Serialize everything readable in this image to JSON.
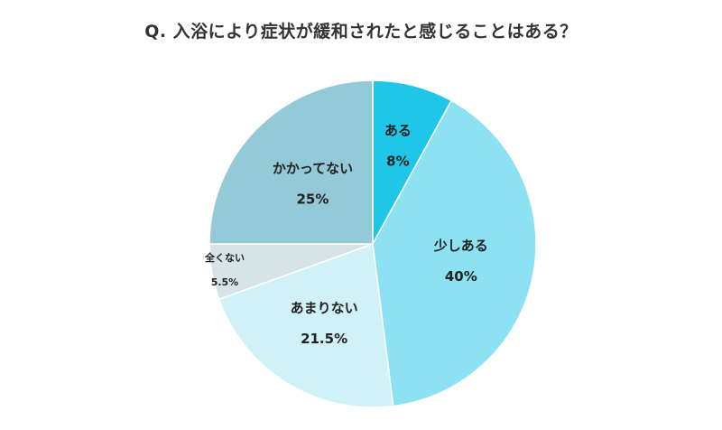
{
  "title": "Q.  入浴により症状が緩和されたと感じることはある？",
  "chart_data": {
    "type": "pie",
    "title": "Q.  入浴により症状が緩和されたと感じることはある？",
    "start_angle_deg": 0,
    "direction": "clockwise",
    "slices": [
      {
        "label": "ある",
        "value": 8,
        "value_label": "8%",
        "color": "#20c6e8"
      },
      {
        "label": "少しある",
        "value": 40,
        "value_label": "40%",
        "color": "#8ce1f3"
      },
      {
        "label": "あまりない",
        "value": 21.5,
        "value_label": "21.5%",
        "color": "#d0f1f8"
      },
      {
        "label": "全くない",
        "value": 5.5,
        "value_label": "5.5%",
        "color": "#d6e4e8"
      },
      {
        "label": "かかってない",
        "value": 25,
        "value_label": "25%",
        "color": "#94c9d7"
      }
    ]
  }
}
